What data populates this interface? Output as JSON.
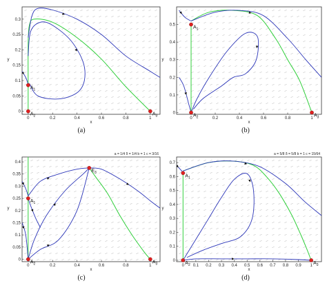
{
  "colors": {
    "trajectory": "#2b35b8",
    "separatrix": "#2fcf3a",
    "equilibrium": "#e02020",
    "field": "#9a9a9a"
  },
  "chart_data": [
    {
      "type": "line",
      "caption": "(a)",
      "xlabel": "x",
      "ylabel": "y",
      "xlim": [
        -0.05,
        1.08
      ],
      "ylim": [
        -0.01,
        0.34
      ],
      "xticks": [
        0,
        0.2,
        0.4,
        0.6,
        0.8,
        1
      ],
      "xtick_labels": [
        "0",
        "0.2",
        "0.4",
        "0.6",
        "0.8",
        "1"
      ],
      "yticks": [
        0,
        0.05,
        0.1,
        0.15,
        0.2,
        0.25,
        0.3
      ],
      "ytick_labels": [
        "0",
        "0.05",
        "0.1",
        "0.15",
        "0.2",
        "0.25",
        "0.3"
      ],
      "parameters": "",
      "grid": false,
      "equilibria": [
        {
          "label": "A1",
          "x": 0,
          "y": 0.085
        },
        {
          "label": "A2",
          "x": 0,
          "y": 0
        },
        {
          "label": "A3",
          "x": 1,
          "y": 0
        }
      ],
      "series": [
        {
          "kind": "separatrix",
          "x": [
            0.0,
            0.0,
            0.0,
            0.01,
            0.05,
            0.2,
            0.4,
            0.6,
            0.8,
            1.0
          ],
          "y": [
            0.0,
            0.1,
            0.22,
            0.28,
            0.3,
            0.29,
            0.24,
            0.17,
            0.08,
            0.0
          ]
        },
        {
          "kind": "trajectory",
          "x": [
            0.0,
            0.03,
            0.08,
            0.2,
            0.4,
            0.6,
            0.8,
            1.0,
            1.08
          ],
          "y": [
            0.24,
            0.31,
            0.335,
            0.33,
            0.3,
            0.25,
            0.18,
            0.13,
            0.11
          ]
        },
        {
          "kind": "trajectory",
          "x": [
            0.0,
            0.02,
            0.1,
            0.2,
            0.35,
            0.45,
            0.46,
            0.4,
            0.25,
            0.08,
            0.01
          ],
          "y": [
            0.18,
            0.26,
            0.29,
            0.28,
            0.23,
            0.16,
            0.1,
            0.06,
            0.04,
            0.05,
            0.09
          ]
        },
        {
          "kind": "trajectory",
          "x": [
            -0.05,
            -0.02,
            0.0
          ],
          "y": [
            0.13,
            0.11,
            0.088
          ]
        }
      ]
    },
    {
      "type": "line",
      "caption": "(b)",
      "xlabel": "x",
      "ylabel": "y",
      "xlim": [
        -0.12,
        1.08
      ],
      "ylim": [
        -0.01,
        0.6
      ],
      "xticks": [
        0,
        0.2,
        0.4,
        0.6,
        0.8,
        1
      ],
      "xtick_labels": [
        "0",
        "0.2",
        "0.4",
        "0.6",
        "0.8",
        "1"
      ],
      "yticks": [
        0,
        0.1,
        0.2,
        0.3,
        0.4,
        0.5
      ],
      "ytick_labels": [
        "0",
        "0.1",
        "0.2",
        "0.3",
        "0.4",
        "0.5"
      ],
      "parameters": "",
      "grid": false,
      "equilibria": [
        {
          "label": "A1",
          "x": 0,
          "y": 0.5
        },
        {
          "label": "A2",
          "x": 0,
          "y": 0
        },
        {
          "label": "A3",
          "x": 1,
          "y": 0
        }
      ],
      "series": [
        {
          "kind": "separatrix",
          "x": [
            0.0,
            0.0,
            0.0
          ],
          "y": [
            0.0,
            0.25,
            0.5
          ]
        },
        {
          "kind": "separatrix",
          "x": [
            0.0,
            0.15,
            0.35,
            0.55,
            0.7,
            0.8,
            0.9,
            1.0
          ],
          "y": [
            0.52,
            0.57,
            0.58,
            0.55,
            0.42,
            0.3,
            0.18,
            0.0
          ]
        },
        {
          "kind": "trajectory",
          "x": [
            -0.1,
            -0.05,
            0.0
          ],
          "y": [
            0.58,
            0.54,
            0.52
          ]
        },
        {
          "kind": "trajectory",
          "x": [
            0.0,
            0.2,
            0.4,
            0.6,
            0.8,
            0.95,
            1.08
          ],
          "y": [
            0.52,
            0.57,
            0.58,
            0.55,
            0.42,
            0.3,
            0.2
          ]
        },
        {
          "kind": "trajectory",
          "x": [
            0.0,
            0.05,
            0.15,
            0.3,
            0.45,
            0.55,
            0.54,
            0.45,
            0.35,
            0.25,
            0.1,
            0.02
          ],
          "y": [
            0.0,
            0.08,
            0.2,
            0.35,
            0.45,
            0.43,
            0.3,
            0.22,
            0.2,
            0.15,
            0.08,
            0.02
          ]
        },
        {
          "kind": "trajectory",
          "x": [
            -0.1,
            -0.06,
            -0.02,
            0.0
          ],
          "y": [
            0.2,
            0.15,
            0.05,
            0.0
          ]
        }
      ]
    },
    {
      "type": "line",
      "caption": "(c)",
      "xlabel": "x",
      "ylabel": "y",
      "xlim": [
        -0.05,
        1.08
      ],
      "ylim": [
        -0.01,
        0.42
      ],
      "xticks": [
        0,
        0.2,
        0.4,
        0.6,
        0.8,
        1
      ],
      "xtick_labels": [
        "0",
        "0.2",
        "0.4",
        "0.6",
        "0.8",
        "1"
      ],
      "yticks": [
        0,
        0.05,
        0.1,
        0.15,
        0.2,
        0.25,
        0.3,
        0.35,
        0.4
      ],
      "ytick_labels": [
        "0",
        "0.05",
        "0.1",
        "0.15",
        "0.2",
        "0.25",
        "0.3",
        "0.35",
        "0.4"
      ],
      "parameters": "a = 1/4  δ = 1/4     b = 1  c = 3/16",
      "grid": false,
      "equilibria": [
        {
          "label": "A1",
          "x": 0,
          "y": 0.25
        },
        {
          "label": "A2",
          "x": 0,
          "y": 0
        },
        {
          "label": "A3",
          "x": 1,
          "y": 0
        },
        {
          "label": "E3",
          "x": 0.5,
          "y": 0.375
        }
      ],
      "series": [
        {
          "kind": "separatrix",
          "x": [
            0.0,
            0.0
          ],
          "y": [
            0.0,
            0.25
          ]
        },
        {
          "kind": "separatrix",
          "x": [
            0.0,
            0.0
          ],
          "y": [
            0.25,
            0.42
          ]
        },
        {
          "kind": "separatrix",
          "x": [
            0.5,
            0.55,
            0.65,
            0.75,
            0.85,
            0.95,
            1.0
          ],
          "y": [
            0.375,
            0.34,
            0.27,
            0.18,
            0.1,
            0.03,
            0.0
          ]
        },
        {
          "kind": "trajectory",
          "x": [
            0.0,
            0.1,
            0.25,
            0.4,
            0.5
          ],
          "y": [
            0.26,
            0.32,
            0.35,
            0.37,
            0.375
          ]
        },
        {
          "kind": "trajectory",
          "x": [
            0.0,
            0.05,
            0.15,
            0.3,
            0.45,
            0.5
          ],
          "y": [
            0.0,
            0.08,
            0.18,
            0.28,
            0.35,
            0.375
          ]
        },
        {
          "kind": "trajectory",
          "x": [
            0.0,
            0.1,
            0.25,
            0.4,
            0.5
          ],
          "y": [
            0.0,
            0.04,
            0.08,
            0.2,
            0.375
          ]
        },
        {
          "kind": "trajectory",
          "x": [
            0.5,
            0.6,
            0.75,
            0.9,
            1.0,
            1.08
          ],
          "y": [
            0.375,
            0.37,
            0.33,
            0.28,
            0.24,
            0.21
          ]
        },
        {
          "kind": "trajectory",
          "x": [
            -0.05,
            -0.02,
            0.0
          ],
          "y": [
            0.32,
            0.29,
            0.26
          ]
        },
        {
          "kind": "trajectory",
          "x": [
            0.0,
            0.02,
            0.06,
            0.1
          ],
          "y": [
            0.25,
            0.22,
            0.17,
            0.13
          ]
        },
        {
          "kind": "trajectory",
          "x": [
            -0.05,
            -0.02,
            0.0
          ],
          "y": [
            0.15,
            0.1,
            0.0
          ]
        }
      ]
    },
    {
      "type": "line",
      "caption": "(d)",
      "xlabel": "x",
      "ylabel": "y",
      "xlim": [
        -0.05,
        1.08
      ],
      "ylim": [
        -0.01,
        0.74
      ],
      "xticks": [
        0,
        0.1,
        0.2,
        0.3,
        0.4,
        0.5,
        0.6,
        0.7,
        0.8,
        0.9,
        1
      ],
      "xtick_labels": [
        "0",
        "0.1",
        "0.2",
        "0.3",
        "0.4",
        "0.5",
        "0.6",
        "0.7",
        "0.8",
        "0.9",
        "1"
      ],
      "yticks": [
        0,
        0.1,
        0.2,
        0.3,
        0.4,
        0.5,
        0.6,
        0.7
      ],
      "ytick_labels": [
        "0",
        "0.1",
        "0.2",
        "0.3",
        "0.4",
        "0.5",
        "0.6",
        "0.7"
      ],
      "parameters": "a = 5/8  δ = 5/8     b = 1  c = 15/64",
      "grid": false,
      "equilibria": [
        {
          "label": "A1",
          "x": 0,
          "y": 0.625
        },
        {
          "label": "A2",
          "x": 0,
          "y": 0
        },
        {
          "label": "A3",
          "x": 1,
          "y": 0
        }
      ],
      "series": [
        {
          "kind": "separatrix",
          "x": [
            0.0,
            0.0
          ],
          "y": [
            0.0,
            0.625
          ]
        },
        {
          "kind": "separatrix",
          "x": [
            0.0,
            0.2,
            0.4,
            0.55,
            0.65,
            0.75,
            0.85,
            0.92,
            0.97,
            1.0
          ],
          "y": [
            0.64,
            0.7,
            0.71,
            0.68,
            0.6,
            0.48,
            0.32,
            0.18,
            0.07,
            0.0
          ]
        },
        {
          "kind": "trajectory",
          "x": [
            -0.05,
            -0.02,
            0.0
          ],
          "y": [
            0.68,
            0.65,
            0.63
          ]
        },
        {
          "kind": "trajectory",
          "x": [
            0.0,
            0.2,
            0.4,
            0.6,
            0.8,
            0.95,
            1.08
          ],
          "y": [
            0.64,
            0.7,
            0.71,
            0.67,
            0.55,
            0.42,
            0.32
          ]
        },
        {
          "kind": "trajectory",
          "x": [
            0.0,
            0.1,
            0.2,
            0.3,
            0.4,
            0.5,
            0.55,
            0.54,
            0.45,
            0.3,
            0.15,
            0.03
          ],
          "y": [
            0.0,
            0.15,
            0.3,
            0.45,
            0.58,
            0.62,
            0.5,
            0.3,
            0.17,
            0.12,
            0.07,
            0.02
          ]
        },
        {
          "kind": "trajectory",
          "x": [
            0.0,
            0.1,
            0.3,
            0.5,
            0.7,
            0.9,
            1.0
          ],
          "y": [
            0.0,
            0.01,
            0.01,
            0.01,
            0.01,
            0.005,
            0.0
          ]
        }
      ]
    }
  ]
}
